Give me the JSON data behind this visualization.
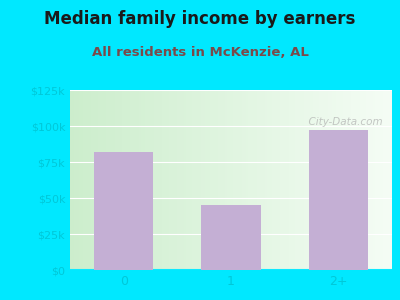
{
  "title": "Median family income by earners",
  "subtitle": "All residents in McKenzie, AL",
  "categories": [
    "0",
    "1",
    "2+"
  ],
  "values": [
    82000,
    45000,
    97000
  ],
  "bar_color": "#c4afd4",
  "background_outer": "#00e8ff",
  "ylim": [
    0,
    125000
  ],
  "yticks": [
    0,
    25000,
    50000,
    75000,
    100000,
    125000
  ],
  "ytick_labels": [
    "$0",
    "$25k",
    "$50k",
    "$75k",
    "$100k",
    "$125k"
  ],
  "title_fontsize": 12,
  "subtitle_fontsize": 9.5,
  "title_color": "#1a1a1a",
  "subtitle_color": "#7a4a4a",
  "tick_color": "#00c8d8",
  "watermark": "  City-Data.com"
}
